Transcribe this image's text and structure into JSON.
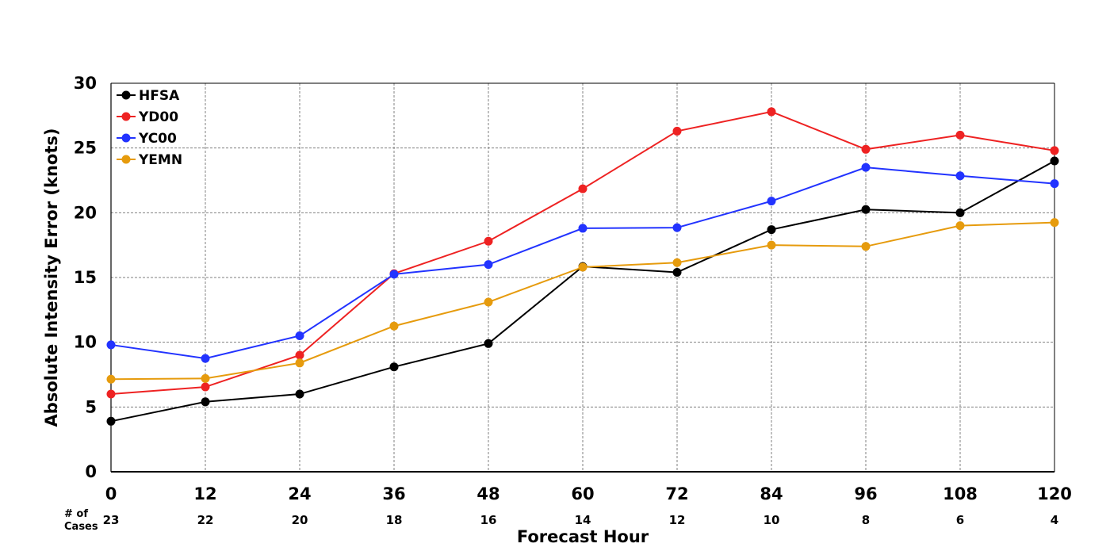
{
  "chart_data": {
    "type": "line",
    "title": "",
    "xlabel": "Forecast Hour",
    "ylabel": "Absolute Intensity Error (knots)",
    "x": [
      0,
      12,
      24,
      36,
      48,
      60,
      72,
      84,
      96,
      108,
      120
    ],
    "xlim": [
      0,
      120
    ],
    "ylim": [
      0,
      30
    ],
    "yticks": [
      0,
      5,
      10,
      15,
      20,
      25,
      30
    ],
    "grid": true,
    "legend_position": "top-left",
    "cases_label_line1": "# of",
    "cases_label_line2": "Cases",
    "cases": [
      23,
      22,
      20,
      18,
      16,
      14,
      12,
      10,
      8,
      6,
      4
    ],
    "series": [
      {
        "name": "HFSA",
        "color": "#000000",
        "values": [
          3.9,
          5.4,
          6.0,
          8.1,
          9.9,
          15.85,
          15.4,
          18.7,
          20.25,
          20.0,
          24.0
        ]
      },
      {
        "name": "YD00",
        "color": "#ee2222",
        "values": [
          6.0,
          6.55,
          9.0,
          15.3,
          17.8,
          21.85,
          26.3,
          27.8,
          24.9,
          26.0,
          24.8
        ]
      },
      {
        "name": "YC00",
        "color": "#2233ff",
        "values": [
          9.8,
          8.75,
          10.5,
          15.25,
          16.0,
          18.8,
          18.85,
          20.9,
          23.5,
          22.85,
          22.25
        ]
      },
      {
        "name": "YEMN",
        "color": "#e69b0d",
        "values": [
          7.15,
          7.2,
          8.4,
          11.25,
          13.1,
          15.8,
          16.15,
          17.5,
          17.4,
          19.0,
          19.25
        ]
      }
    ]
  }
}
